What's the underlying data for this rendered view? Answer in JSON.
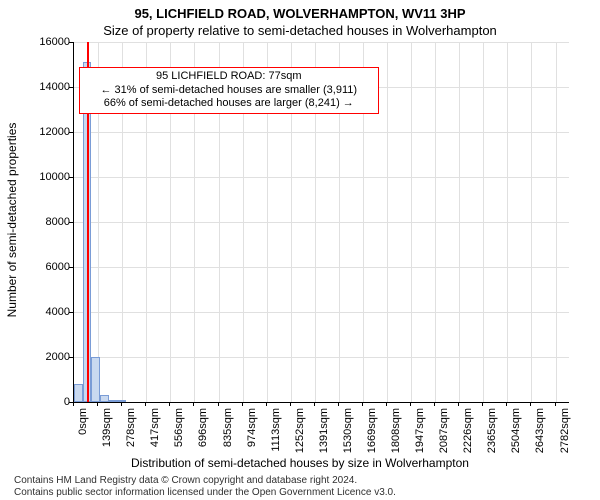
{
  "title": {
    "main": "95, LICHFIELD ROAD, WOLVERHAMPTON, WV11 3HP",
    "sub": "Size of property relative to semi-detached houses in Wolverhampton"
  },
  "chart": {
    "type": "histogram",
    "xlabel": "Distribution of semi-detached houses by size in Wolverhampton",
    "ylabel": "Number of semi-detached properties",
    "ylim": [
      0,
      16000
    ],
    "ytick_step": 2000,
    "x_tick_values": [
      0,
      139,
      278,
      417,
      556,
      696,
      835,
      974,
      1113,
      1252,
      1391,
      1530,
      1669,
      1808,
      1947,
      2087,
      2226,
      2365,
      2504,
      2643,
      2782
    ],
    "x_unit_suffix": "sqm",
    "x_max": 2860,
    "bar_color": "#c9d9f0",
    "bar_border_color": "#7a9cd6",
    "grid_color": "#e0e0e0",
    "background_color": "#ffffff",
    "bars": [
      {
        "x_start": 0,
        "x_end": 50,
        "value": 800
      },
      {
        "x_start": 50,
        "x_end": 100,
        "value": 15100
      },
      {
        "x_start": 100,
        "x_end": 150,
        "value": 2000
      },
      {
        "x_start": 150,
        "x_end": 200,
        "value": 300
      },
      {
        "x_start": 200,
        "x_end": 250,
        "value": 80
      },
      {
        "x_start": 250,
        "x_end": 300,
        "value": 30
      }
    ],
    "marker": {
      "value": 77,
      "color": "#ff0000"
    },
    "annotation": {
      "lines": [
        "95 LICHFIELD ROAD: 77sqm",
        "← 31% of semi-detached houses are smaller (3,911)",
        "66% of semi-detached houses are larger (8,241) →"
      ],
      "x": 900,
      "y_top": 14900,
      "border_color": "#ff0000",
      "fontsize": 11
    },
    "label_fontsize": 12,
    "tick_fontsize": 11
  },
  "footer": {
    "line1": "Contains HM Land Registry data © Crown copyright and database right 2024.",
    "line2": "Contains public sector information licensed under the Open Government Licence v3.0."
  }
}
